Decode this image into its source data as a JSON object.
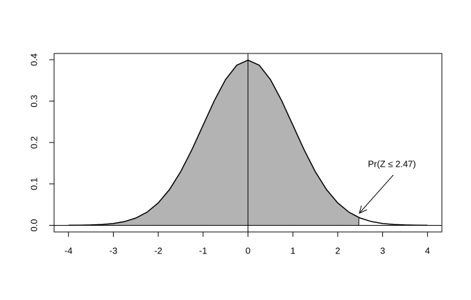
{
  "chart_data": {
    "type": "line",
    "x": [
      -4,
      -3.75,
      -3.5,
      -3.25,
      -3,
      -2.75,
      -2.5,
      -2.25,
      -2,
      -1.75,
      -1.5,
      -1.25,
      -1,
      -0.75,
      -0.5,
      -0.25,
      0,
      0.25,
      0.5,
      0.75,
      1,
      1.25,
      1.5,
      1.75,
      2,
      2.25,
      2.5,
      2.75,
      3,
      3.25,
      3.5,
      3.75,
      4
    ],
    "series": [
      {
        "color": "#000000",
        "values": [
          0.0001,
          0.0004,
          0.0009,
          0.002,
          0.0044,
          0.0091,
          0.0175,
          0.0317,
          0.054,
          0.0863,
          0.1295,
          0.1826,
          0.242,
          0.3011,
          0.3521,
          0.3867,
          0.3989,
          0.3867,
          0.3521,
          0.3011,
          0.242,
          0.1826,
          0.1295,
          0.0863,
          0.054,
          0.0317,
          0.0175,
          0.0091,
          0.0044,
          0.002,
          0.0009,
          0.0004,
          0.0001
        ]
      }
    ],
    "shade": {
      "x_end": 2.47,
      "y_end": 0.019,
      "color": "#b3b3b3"
    },
    "vline": 0,
    "hline": 0,
    "annotation": "Pr(Z ≤ 2.47)",
    "xlim": [
      -4.32,
      4.32
    ],
    "ylim": [
      -0.016,
      0.415
    ],
    "xticks": [
      -4,
      -3,
      -2,
      -1,
      0,
      1,
      2,
      3,
      4
    ],
    "yticks": [
      {
        "value": 0,
        "label": "0.0"
      },
      0.1,
      0.2,
      0.3,
      0.4
    ]
  }
}
